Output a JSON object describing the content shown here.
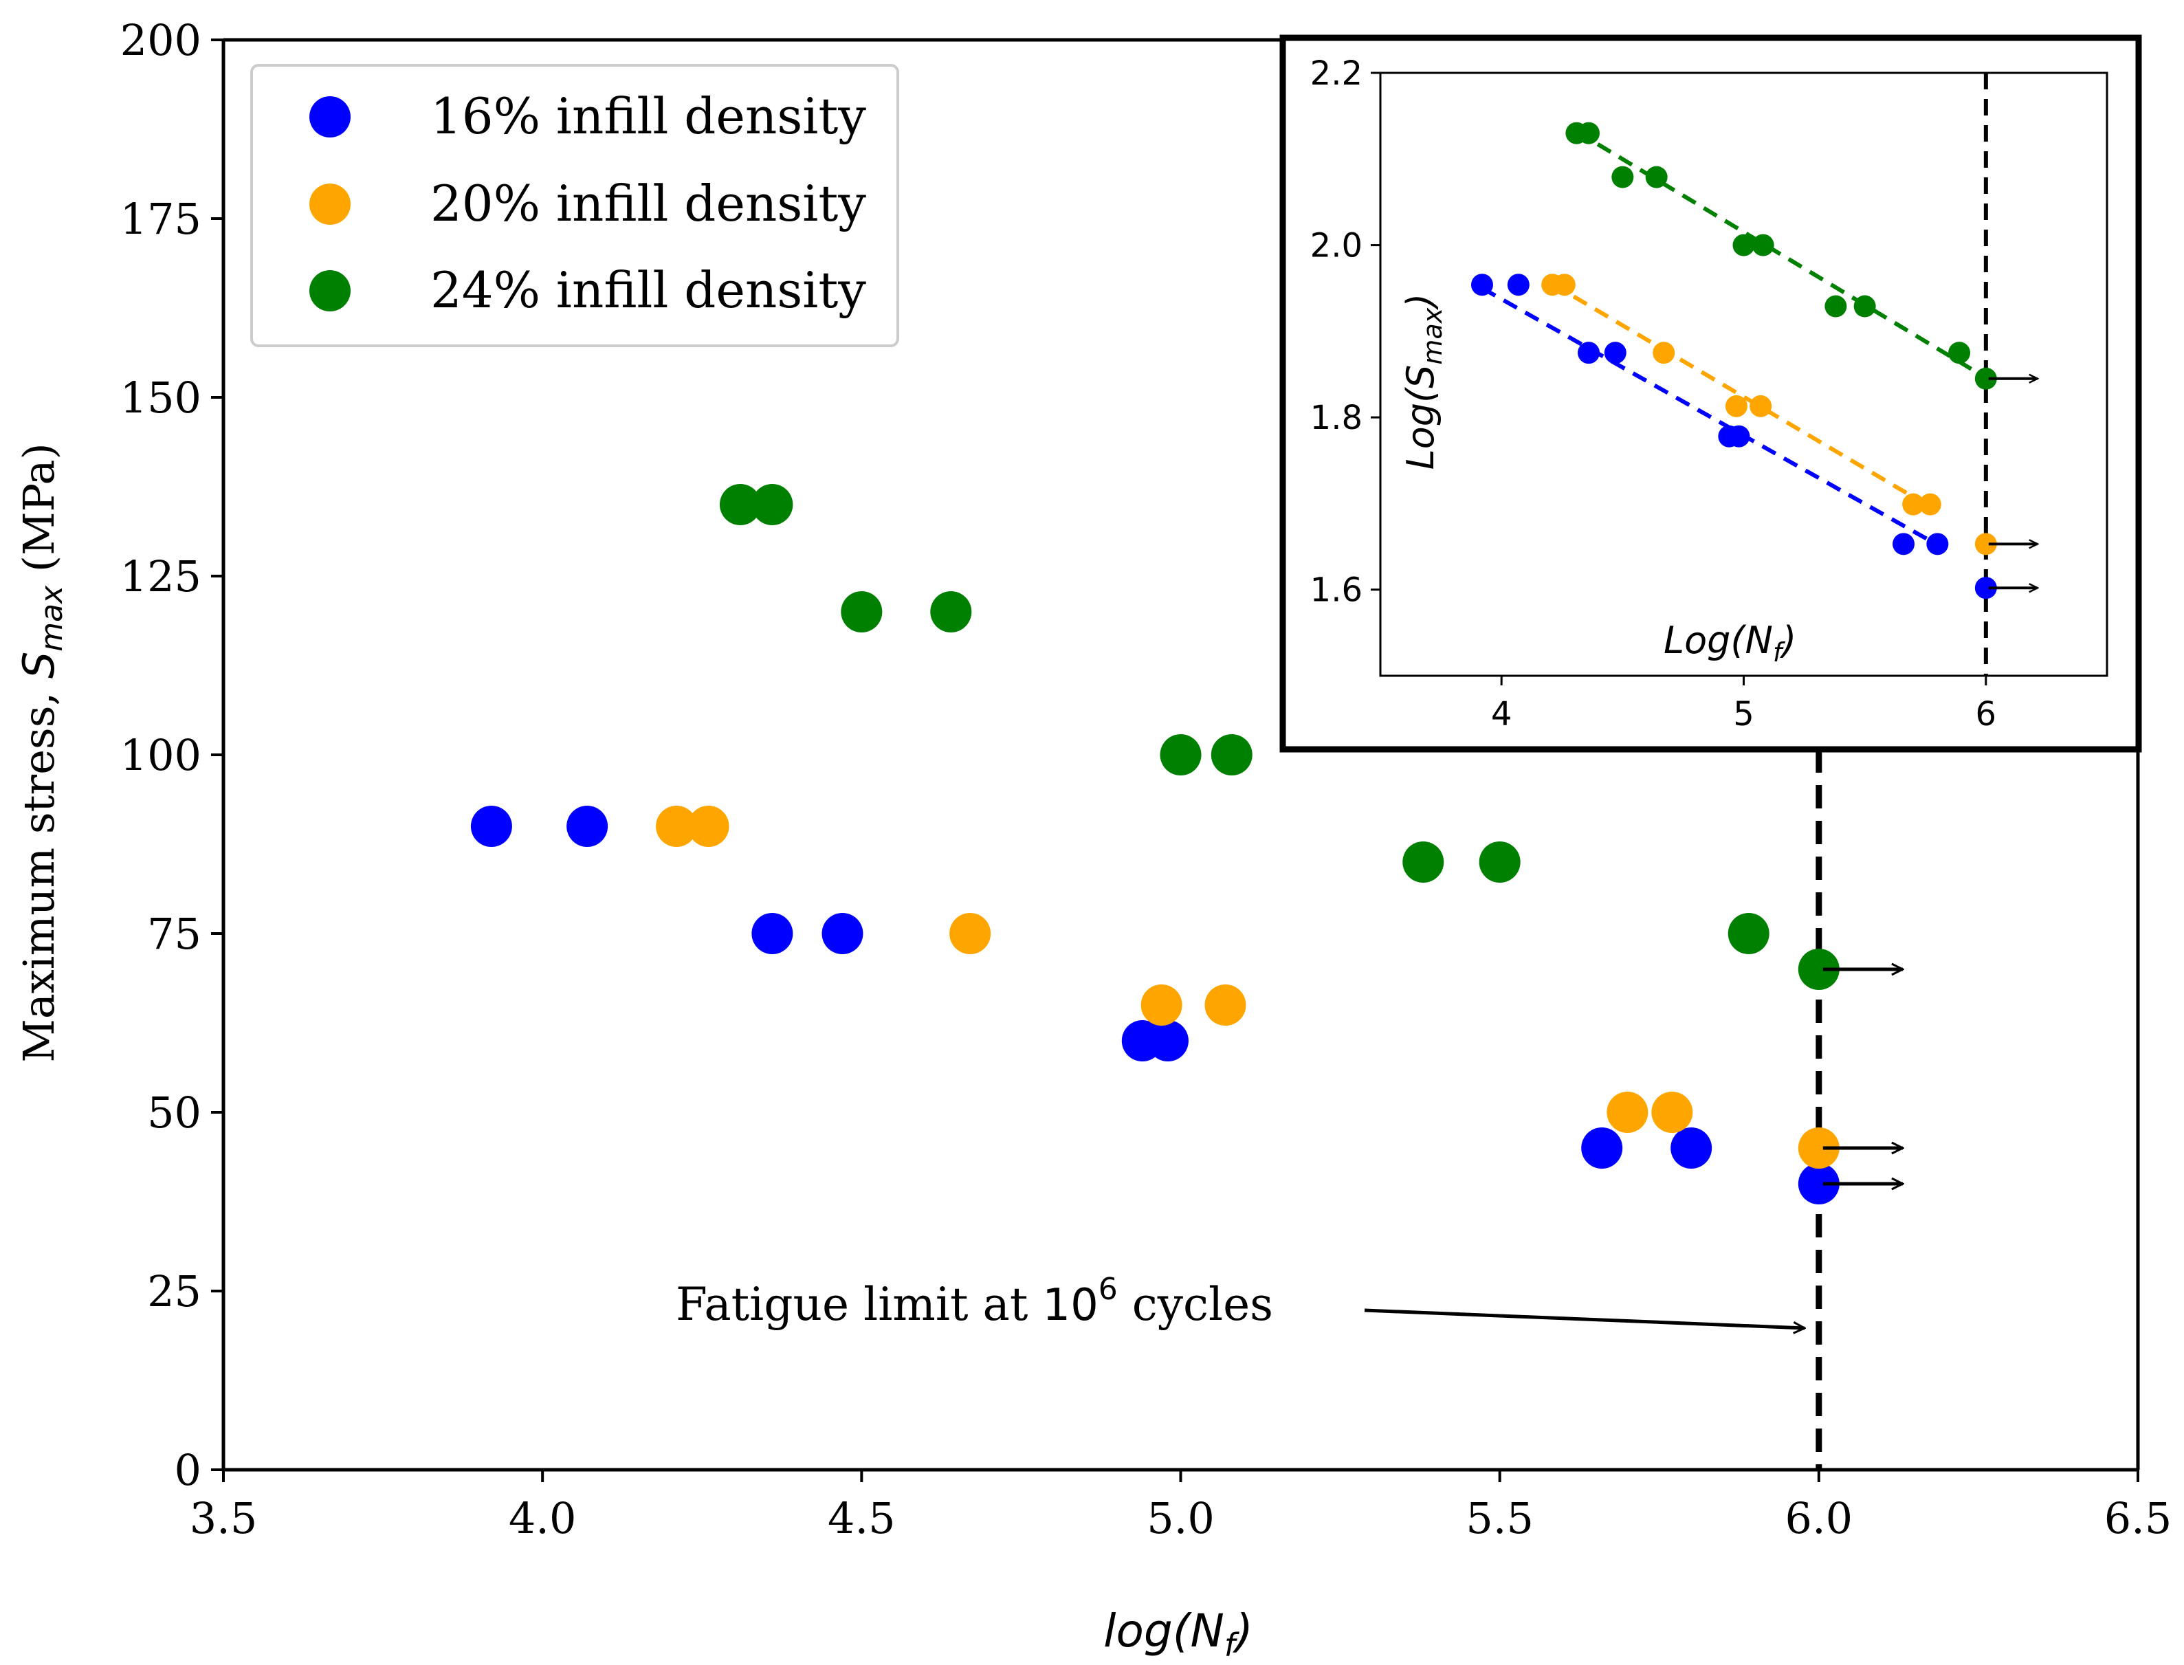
{
  "chart_data": {
    "type": "scatter",
    "xlabel_base": "log(N",
    "xlabel_sub": "f",
    "xlabel_close": ")",
    "ylabel_text": "Maximum stress, ",
    "ylabel_sym": "S",
    "ylabel_sub": "max",
    "ylabel_unit": " (MPa)",
    "xlim": [
      3.5,
      6.5
    ],
    "ylim": [
      0,
      200
    ],
    "xticks": [
      "3.5",
      "4.0",
      "4.5",
      "5.0",
      "5.5",
      "6.0",
      "6.5"
    ],
    "yticks": [
      "0",
      "25",
      "50",
      "75",
      "100",
      "125",
      "150",
      "175",
      "200"
    ],
    "fatigue_limit_x": 6.0,
    "annotation_prefix": "Fatigue limit at ",
    "annotation_power_base": "10",
    "annotation_power_exp": "6",
    "annotation_suffix": " cycles",
    "series": [
      {
        "name": "16% infill density",
        "color": "#0000ff",
        "points": [
          [
            3.92,
            90
          ],
          [
            4.07,
            90
          ],
          [
            4.36,
            75
          ],
          [
            4.47,
            75
          ],
          [
            4.94,
            60
          ],
          [
            4.98,
            60
          ],
          [
            5.66,
            45
          ],
          [
            5.8,
            45
          ]
        ],
        "runouts": [
          [
            6.0,
            40
          ]
        ]
      },
      {
        "name": "20% infill density",
        "color": "#ffa500",
        "points": [
          [
            4.21,
            90
          ],
          [
            4.26,
            90
          ],
          [
            4.67,
            75
          ],
          [
            4.97,
            65
          ],
          [
            5.07,
            65
          ],
          [
            5.7,
            50
          ],
          [
            5.77,
            50
          ]
        ],
        "runouts": [
          [
            6.0,
            45
          ]
        ]
      },
      {
        "name": "24% infill density",
        "color": "#008000",
        "points": [
          [
            4.31,
            135
          ],
          [
            4.36,
            135
          ],
          [
            4.5,
            120
          ],
          [
            4.64,
            120
          ],
          [
            5.0,
            100
          ],
          [
            5.08,
            100
          ],
          [
            5.38,
            85
          ],
          [
            5.5,
            85
          ],
          [
            5.89,
            75
          ]
        ],
        "runouts": [
          [
            6.0,
            70
          ]
        ]
      }
    ],
    "inset": {
      "xlabel_base": "Log(N",
      "xlabel_sub": "f",
      "xlabel_close": ")",
      "ylabel_base": "Log(S",
      "ylabel_sub": "max",
      "ylabel_close": ")",
      "xlim": [
        3.5,
        6.5
      ],
      "ylim": [
        1.5,
        2.2
      ],
      "xticks": [
        "4",
        "5",
        "6"
      ],
      "yticks": [
        "1.6",
        "1.8",
        "2.0",
        "2.2"
      ],
      "series": [
        {
          "name": "16% infill density",
          "color": "#0000ff",
          "points": [
            [
              3.92,
              1.954
            ],
            [
              4.07,
              1.954
            ],
            [
              4.36,
              1.875
            ],
            [
              4.47,
              1.875
            ],
            [
              4.94,
              1.778
            ],
            [
              4.98,
              1.778
            ],
            [
              5.66,
              1.653
            ],
            [
              5.8,
              1.653
            ]
          ],
          "runout": [
            6.0,
            1.602
          ],
          "fit": [
            [
              3.92,
              1.95
            ],
            [
              5.8,
              1.652
            ]
          ]
        },
        {
          "name": "20% infill density",
          "color": "#ffa500",
          "points": [
            [
              4.21,
              1.954
            ],
            [
              4.26,
              1.954
            ],
            [
              4.67,
              1.875
            ],
            [
              4.97,
              1.813
            ],
            [
              5.07,
              1.813
            ],
            [
              5.7,
              1.699
            ],
            [
              5.77,
              1.699
            ]
          ],
          "runout": [
            6.0,
            1.653
          ],
          "fit": [
            [
              4.21,
              1.955
            ],
            [
              5.77,
              1.696
            ]
          ]
        },
        {
          "name": "24% infill density",
          "color": "#008000",
          "points": [
            [
              4.31,
              2.13
            ],
            [
              4.36,
              2.13
            ],
            [
              4.5,
              2.079
            ],
            [
              4.64,
              2.079
            ],
            [
              5.0,
              2.0
            ],
            [
              5.08,
              2.0
            ],
            [
              5.38,
              1.929
            ],
            [
              5.5,
              1.929
            ],
            [
              5.89,
              1.875
            ]
          ],
          "runout": [
            6.0,
            1.845
          ],
          "fit": [
            [
              4.31,
              2.132
            ],
            [
              6.0,
              1.846
            ]
          ]
        }
      ]
    }
  }
}
